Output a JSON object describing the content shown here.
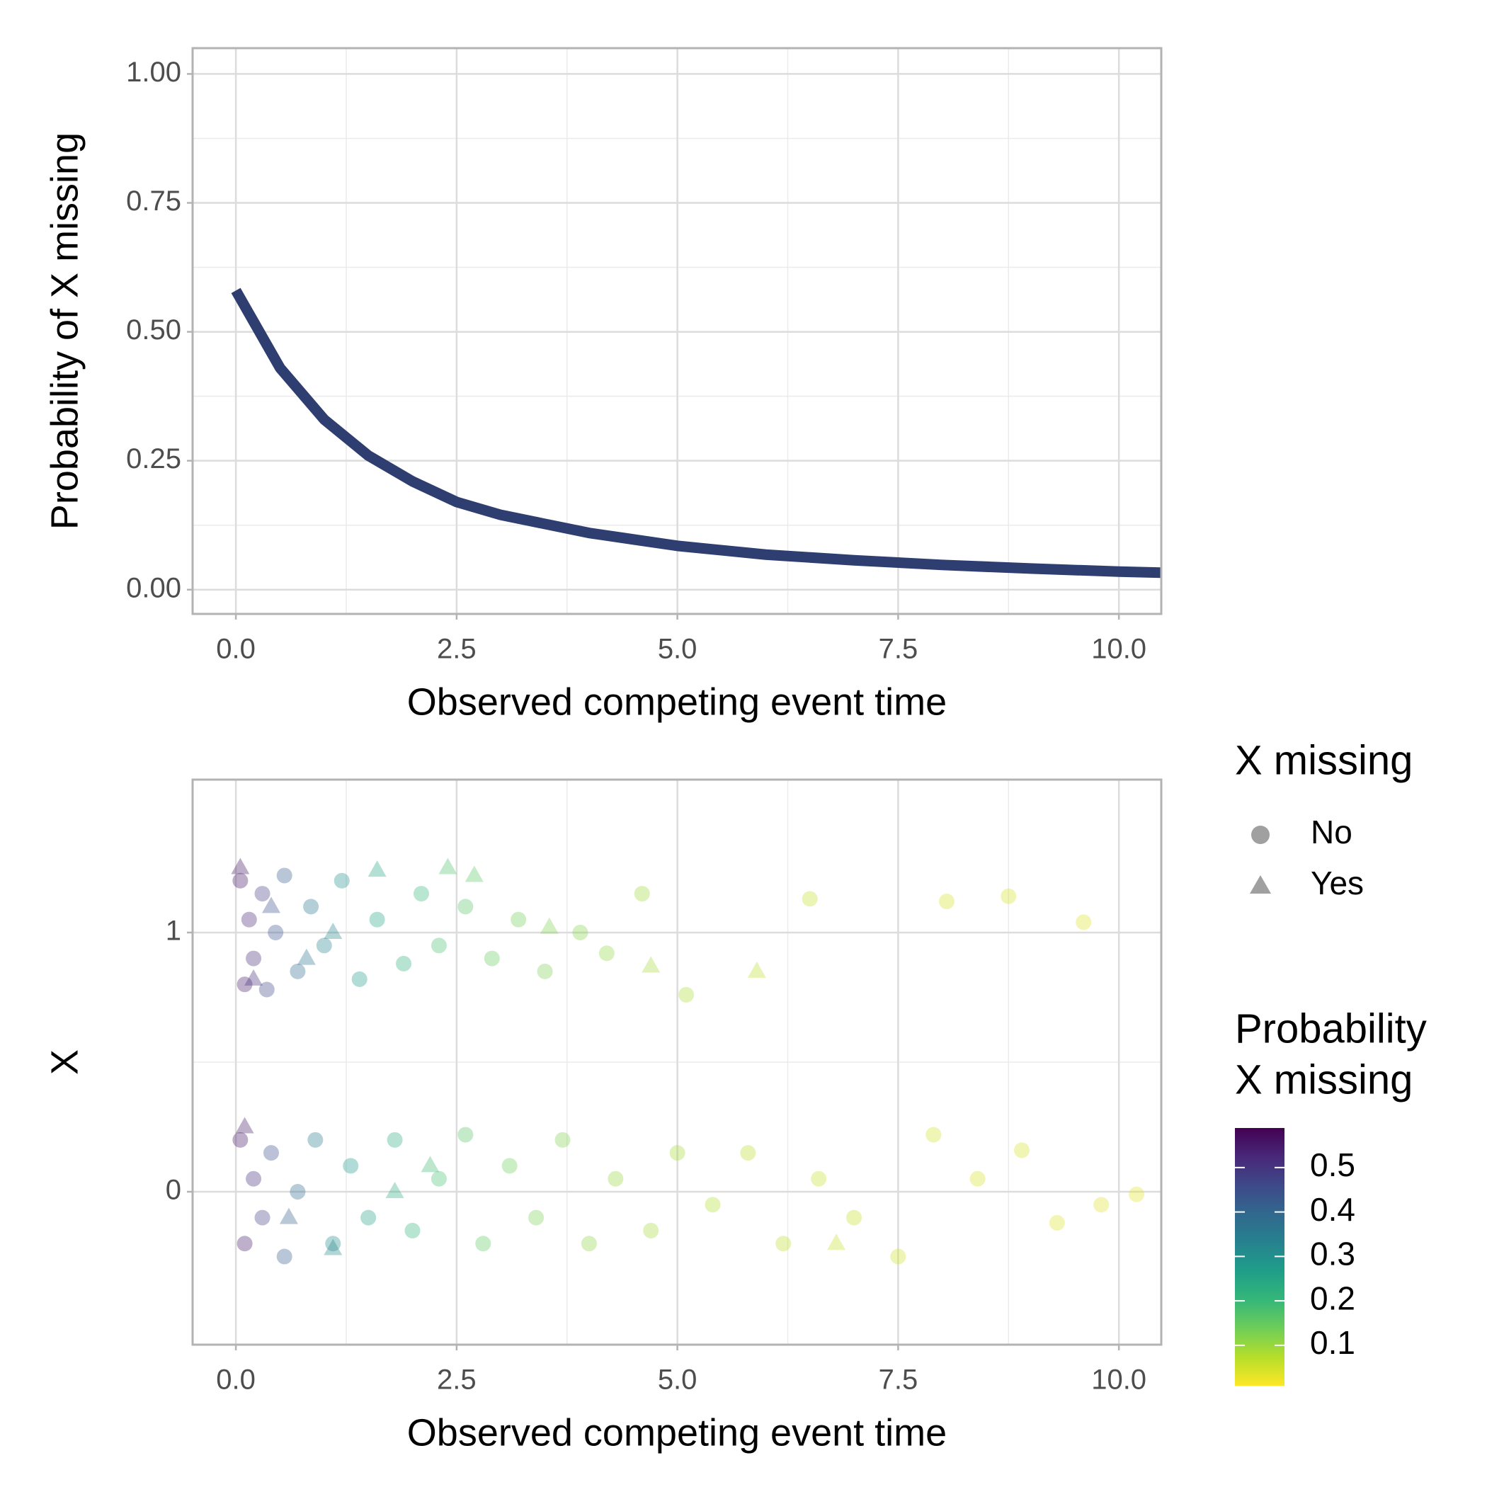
{
  "chart_data": [
    {
      "type": "line",
      "x_label": "Observed competing event time",
      "y_label": "Probability of X missing",
      "x": [
        0,
        0.5,
        1,
        1.5,
        2,
        2.5,
        3,
        4,
        5,
        6,
        7,
        8,
        9,
        10,
        10.48
      ],
      "values": [
        0.58,
        0.43,
        0.33,
        0.26,
        0.21,
        0.17,
        0.145,
        0.11,
        0.085,
        0.068,
        0.057,
        0.048,
        0.041,
        0.035,
        0.033
      ],
      "color": "#2f3e70",
      "xlim": [
        -0.49,
        10.48
      ],
      "xticks": [
        {
          "value": 0,
          "label": "0.0"
        },
        2.5,
        {
          "value": 5,
          "label": "5.0"
        },
        7.5,
        {
          "value": 10,
          "label": "10.0"
        }
      ],
      "ylim": [
        -0.047,
        1.05
      ],
      "yticks": [
        {
          "value": 0,
          "label": "0.00"
        },
        0.25,
        {
          "value": 0.5,
          "label": "0.50"
        },
        0.75,
        {
          "value": 1,
          "label": "1.00"
        }
      ],
      "grid": true
    },
    {
      "type": "scatter",
      "x_label": "Observed competing event time",
      "y_label": "X",
      "shape_legend_title": "X missing",
      "color_legend_title": [
        "Probability",
        "X missing"
      ],
      "colorlim": [
        0.009,
        0.589
      ],
      "colorticks": [
        0.1,
        0.2,
        0.3,
        0.4,
        0.5
      ],
      "series": [
        {
          "name": "No",
          "shape": "circle",
          "x": [
            0.05,
            0.1,
            0.15,
            0.2,
            0.3,
            0.35,
            0.45,
            0.55,
            0.7,
            0.85,
            1.0,
            1.2,
            1.4,
            1.6,
            1.9,
            2.1,
            2.3,
            2.6,
            2.9,
            3.2,
            3.5,
            3.9,
            4.2,
            4.6,
            5.1,
            6.5,
            8.05,
            8.75,
            9.6,
            0.05,
            0.1,
            0.2,
            0.3,
            0.4,
            0.55,
            0.7,
            0.9,
            1.1,
            1.3,
            1.5,
            1.8,
            2.0,
            2.3,
            2.6,
            2.8,
            3.1,
            3.4,
            3.7,
            4.0,
            4.3,
            4.7,
            5.0,
            5.4,
            5.8,
            6.2,
            6.6,
            7.0,
            7.5,
            7.9,
            8.4,
            8.9,
            9.3,
            9.8,
            10.2
          ],
          "values": [
            1.2,
            0.8,
            1.05,
            0.9,
            1.15,
            0.78,
            1.0,
            1.22,
            0.85,
            1.1,
            0.95,
            1.2,
            0.82,
            1.05,
            0.88,
            1.15,
            0.95,
            1.1,
            0.9,
            1.05,
            0.85,
            1.0,
            0.92,
            1.15,
            0.76,
            1.13,
            1.12,
            1.14,
            1.04,
            0.2,
            -0.2,
            0.05,
            -0.1,
            0.15,
            -0.25,
            0.0,
            0.2,
            -0.2,
            0.1,
            -0.1,
            0.2,
            -0.15,
            0.05,
            0.22,
            -0.2,
            0.1,
            -0.1,
            0.2,
            -0.2,
            0.05,
            -0.15,
            0.15,
            -0.05,
            0.15,
            -0.2,
            0.05,
            -0.1,
            -0.25,
            0.22,
            0.05,
            0.16,
            -0.12,
            -0.05,
            -0.01
          ],
          "color_values": [
            0.56,
            0.55,
            0.53,
            0.51,
            0.48,
            0.47,
            0.44,
            0.42,
            0.39,
            0.36,
            0.33,
            0.3,
            0.27,
            0.25,
            0.22,
            0.2,
            0.18,
            0.165,
            0.15,
            0.135,
            0.125,
            0.115,
            0.105,
            0.095,
            0.083,
            0.062,
            0.047,
            0.043,
            0.037,
            0.56,
            0.55,
            0.51,
            0.48,
            0.45,
            0.42,
            0.39,
            0.35,
            0.31,
            0.28,
            0.26,
            0.23,
            0.21,
            0.18,
            0.165,
            0.155,
            0.14,
            0.13,
            0.12,
            0.11,
            0.1,
            0.092,
            0.085,
            0.077,
            0.07,
            0.065,
            0.06,
            0.056,
            0.052,
            0.049,
            0.045,
            0.042,
            0.039,
            0.036,
            0.034
          ]
        },
        {
          "name": "Yes",
          "shape": "triangle",
          "x": [
            0.05,
            0.2,
            0.4,
            0.8,
            1.1,
            1.6,
            2.4,
            2.7,
            3.55,
            4.7,
            5.9,
            0.1,
            0.6,
            1.1,
            1.8,
            2.2,
            6.8
          ],
          "values": [
            1.25,
            0.82,
            1.1,
            0.9,
            1.0,
            1.24,
            1.25,
            1.22,
            1.02,
            0.87,
            0.85,
            0.25,
            -0.1,
            -0.22,
            0.0,
            0.1,
            -0.2
          ],
          "color_values": [
            0.56,
            0.51,
            0.45,
            0.37,
            0.32,
            0.25,
            0.175,
            0.16,
            0.124,
            0.09,
            0.069,
            0.55,
            0.41,
            0.32,
            0.23,
            0.19,
            0.058
          ]
        }
      ],
      "xlim": [
        -0.49,
        10.48
      ],
      "xticks": [
        {
          "value": 0,
          "label": "0.0"
        },
        2.5,
        {
          "value": 5,
          "label": "5.0"
        },
        7.5,
        {
          "value": 10,
          "label": "10.0"
        }
      ],
      "ylim": [
        -0.59,
        1.59
      ],
      "yticks": [
        0,
        1
      ],
      "grid": true
    }
  ]
}
